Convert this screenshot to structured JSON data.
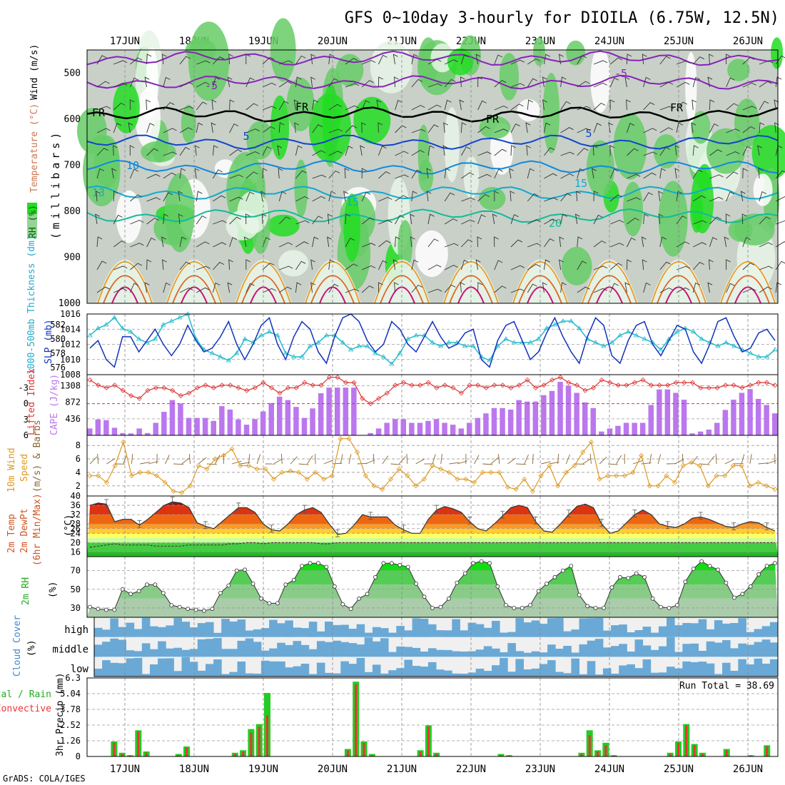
{
  "title": "GFS 0~10day 3-hourly for DIOILA (6.75W, 12.5N)",
  "credit": "GrADS: COLA/IGES",
  "dates": [
    "17JUN",
    "18JUN",
    "19JUN",
    "20JUN",
    "21JUN",
    "22JUN",
    "23JUN",
    "24JUN",
    "25JUN",
    "26JUN"
  ],
  "colors": {
    "rh_green_dark": "#22dd22",
    "rh_green": "#66cc66",
    "rh_light": "#e8f4e8",
    "rh_grey": "#c8d0c8",
    "slp": "#1133bb",
    "thickness": "#22bbcc",
    "lifted_index": "#dd3333",
    "cape": "#bb77ee",
    "wind_speed": "#dd9922",
    "rh_surface": "#33cc33",
    "cloud_blue": "#6aa9d6",
    "precip_total": "#22cc22",
    "precip_conv": "#ee3333"
  },
  "chart_data": [
    {
      "panel": "upper-air",
      "type": "heatmap",
      "ylabel": "(millibars)",
      "yticks": [
        500,
        600,
        700,
        800,
        900,
        1000
      ],
      "ylim": [
        1000,
        450
      ],
      "legend_labels": [
        "RH (%)",
        "Temperature (°C)",
        "Wind (m/s)"
      ],
      "contour_labels": [
        "-5",
        "FR",
        "5",
        "10",
        "13",
        "15",
        "20"
      ],
      "temperature_levels_hpa": [
        {
          "label": "-5",
          "color": "#8822bb",
          "p": 520
        },
        {
          "label": "-5",
          "color": "#8822bb",
          "p": 468
        },
        {
          "label": "FR",
          "color": "#000000",
          "p": 590
        },
        {
          "label": "5",
          "color": "#1144cc",
          "p": 650
        },
        {
          "label": "10",
          "color": "#1188dd",
          "p": 705
        },
        {
          "label": "15",
          "color": "#11aacc",
          "p": 760
        },
        {
          "label": "20",
          "color": "#11bb99",
          "p": 810
        }
      ]
    },
    {
      "panel": "pressure",
      "type": "line",
      "series": [
        {
          "name": "SLP (mb)",
          "axis": "right",
          "yticks": [
            1008,
            1010,
            1012,
            1014,
            1016
          ],
          "values": [
            1011.5,
            1012.5,
            1010,
            1009,
            1013,
            1013,
            1011,
            1012.5,
            1014,
            1012,
            1010.5,
            1012,
            1014.5,
            1012.5,
            1011,
            1011.5,
            1013,
            1015,
            1012,
            1010,
            1012,
            1014.5,
            1015.5,
            1012,
            1010,
            1013,
            1015,
            1014,
            1011,
            1009.5,
            1013,
            1015.5,
            1016,
            1015,
            1012.5,
            1011,
            1012,
            1015,
            1014,
            1012,
            1011,
            1013,
            1015,
            1013,
            1011.5,
            1012,
            1013.5,
            1014,
            1010,
            1009,
            1012.5,
            1014.5,
            1015,
            1012.5,
            1010,
            1011,
            1013.5,
            1015.5,
            1013,
            1011,
            1009.5,
            1013,
            1015.5,
            1014.5,
            1010.5,
            1009.5,
            1012.5,
            1014.5,
            1015,
            1012,
            1010.5,
            1012.5,
            1014.5,
            1014,
            1011,
            1009.5,
            1012,
            1015,
            1015.5,
            1013,
            1011,
            1011.5,
            1013.5,
            1014,
            1012.5
          ]
        },
        {
          "name": "1000-500mb Thickness (dm)",
          "axis": "left",
          "yticks": [
            576,
            578,
            580,
            582
          ],
          "values": [
            580.5,
            581.5,
            582,
            583,
            581.5,
            581,
            580,
            579.5,
            580,
            582,
            582.5,
            583,
            583.5,
            580,
            578.5,
            578,
            577.5,
            577,
            578,
            580,
            579.5,
            580.5,
            581,
            580.5,
            578,
            577.5,
            577.5,
            579,
            579.5,
            580.5,
            580.5,
            579.5,
            578.5,
            579,
            579,
            578,
            577.5,
            576.5,
            578,
            580,
            580.5,
            580.5,
            579.5,
            579,
            579.5,
            579.5,
            579,
            579,
            577.5,
            577,
            579,
            580,
            579.5,
            579.5,
            579.5,
            580,
            581.5,
            582,
            582.5,
            582.5,
            581.5,
            580,
            579.5,
            579,
            579.5,
            580.5,
            581,
            580.5,
            580,
            579.5,
            578.5,
            580,
            581,
            581.5,
            581,
            580,
            579.5,
            579,
            579.5,
            579,
            578.5,
            578,
            577.5,
            577.5,
            578.5
          ]
        }
      ]
    },
    {
      "panel": "instability",
      "type": "bar",
      "series": [
        {
          "name": "CAPE (J/kg)",
          "axis": "right",
          "yticks": [
            436,
            872,
            1308
          ],
          "values": [
            180,
            420,
            400,
            200,
            60,
            50,
            180,
            60,
            330,
            620,
            930,
            840,
            460,
            460,
            460,
            380,
            770,
            680,
            420,
            280,
            430,
            630,
            850,
            1020,
            930,
            750,
            460,
            710,
            1110,
            1260,
            1260,
            1260,
            1260,
            0,
            60,
            180,
            330,
            430,
            430,
            330,
            330,
            380,
            430,
            330,
            280,
            180,
            330,
            460,
            580,
            720,
            720,
            680,
            930,
            890,
            890,
            1060,
            1170,
            1410,
            1310,
            1120,
            870,
            720,
            100,
            180,
            250,
            330,
            330,
            330,
            800,
            1210,
            1210,
            1120,
            940,
            50,
            100,
            150,
            330,
            670,
            940,
            1120,
            1220,
            960,
            800,
            580
          ]
        },
        {
          "name": "Lifted Index",
          "axis": "left",
          "yticks": [
            -3,
            0,
            3,
            6
          ],
          "values": [
            -4.5,
            -3.5,
            -3,
            -3.5,
            -2.5,
            -1.5,
            -1,
            -2.5,
            -3,
            -3,
            -2.5,
            -1.5,
            -2,
            -3,
            -3.5,
            -3,
            -3.5,
            -3.5,
            -3,
            -2.5,
            -3,
            -4,
            -3,
            -2,
            -3,
            -3,
            -4,
            -3.5,
            -3.5,
            -5,
            -5,
            -4,
            -4,
            -1,
            0,
            -1,
            -2,
            -3.5,
            -4,
            -3.5,
            -3.5,
            -4,
            -3,
            -3.5,
            -3,
            -2,
            -3.5,
            -3.5,
            -3,
            -3.5,
            -3.5,
            -3,
            -3.5,
            -4.5,
            -3,
            -3.5,
            -4.5,
            -5,
            -4,
            -3.5,
            -2.5,
            -3,
            -4.5,
            -4,
            -3.5,
            -3.5,
            -4,
            -4.5,
            -3.5,
            -3.5,
            -3.5,
            -4,
            -4,
            -4,
            -3,
            -3,
            -3,
            -3.5,
            -3.5,
            -3,
            -3.5,
            -4,
            -4,
            -3.5
          ]
        }
      ]
    },
    {
      "panel": "wind",
      "type": "line",
      "name": "10m Wind Speed (m/s)",
      "yticks": [
        2,
        4,
        6,
        8
      ],
      "values": [
        3.5,
        3.5,
        2.5,
        5,
        8.5,
        3.5,
        4,
        4,
        3.5,
        2.5,
        1.2,
        1,
        2,
        5,
        4.5,
        6,
        6.5,
        7.5,
        5,
        5,
        4.5,
        4.5,
        3,
        4,
        4.2,
        4,
        3,
        4,
        3,
        3.5,
        9,
        9,
        7,
        3.5,
        2,
        1.5,
        3,
        4.5,
        3.5,
        2,
        3,
        5,
        4.5,
        4,
        3,
        3,
        2.5,
        4,
        4,
        4,
        1.8,
        1.5,
        3,
        1.2,
        3.5,
        5,
        2,
        4,
        5,
        7,
        8.5,
        3,
        3.5,
        3.5,
        3.5,
        4,
        6.5,
        2,
        2,
        3.5,
        2.5,
        5,
        5.5,
        5,
        2,
        3.5,
        3.5,
        5,
        5,
        2,
        2.5,
        2,
        1.5
      ]
    },
    {
      "panel": "temperature",
      "type": "area",
      "yticks": [
        16,
        20,
        24,
        26,
        28,
        32,
        36,
        40
      ],
      "ylim": [
        14,
        40
      ],
      "series": [
        {
          "name": "2m Temp (°C)",
          "values": [
            36,
            37,
            36.5,
            29,
            30,
            30,
            27.5,
            30,
            33,
            36,
            37.5,
            37,
            35,
            28.5,
            27,
            26,
            29,
            32,
            35,
            35,
            33,
            28,
            25.5,
            25,
            28,
            32,
            34,
            35,
            33,
            28,
            23.5,
            24,
            27.5,
            32,
            31,
            31,
            31,
            27.5,
            25.5,
            24,
            24,
            30,
            34,
            35.5,
            34.5,
            33,
            29,
            26,
            25,
            28,
            31.5,
            35,
            36,
            35,
            29,
            25,
            24.5,
            28,
            32,
            35.5,
            36.5,
            35,
            28,
            24,
            25,
            28.5,
            32,
            34,
            32,
            28,
            27,
            26.5,
            28,
            30.5,
            31,
            30,
            28.5,
            27,
            26.5,
            28,
            29,
            28.5,
            26.5,
            25
          ]
        },
        {
          "name": "2m DewPt (°C)",
          "values": [
            18,
            18.5,
            19,
            19.5,
            19,
            19,
            19,
            19,
            18.5,
            18.5,
            18.5,
            18.5,
            19,
            19,
            19,
            19,
            19,
            19.5,
            19.5,
            20,
            20,
            19.5,
            20,
            20,
            20,
            20,
            20,
            20,
            19.5,
            19.5,
            20,
            20,
            20,
            20,
            20,
            20,
            20,
            20,
            20,
            20,
            20,
            20,
            20,
            20,
            20,
            20,
            20,
            20,
            20,
            20,
            20,
            20,
            20,
            20,
            20,
            20,
            20,
            20,
            20,
            20,
            20,
            20,
            20,
            20,
            20,
            20,
            20,
            20,
            20,
            20,
            20,
            20,
            20,
            20,
            20,
            20,
            20,
            20,
            20,
            20,
            20,
            20,
            20,
            20
          ]
        }
      ]
    },
    {
      "panel": "humidity",
      "type": "area",
      "name": "2m RH (%)",
      "yticks": [
        30,
        50,
        70
      ],
      "values": [
        31,
        29,
        28,
        28,
        50,
        45,
        48,
        55,
        55,
        46,
        33,
        31,
        29,
        28,
        27,
        29,
        46,
        54,
        70,
        71,
        56,
        40,
        35,
        35,
        55,
        60,
        75,
        78,
        78,
        74,
        53,
        34,
        29,
        40,
        45,
        63,
        78,
        78,
        76,
        74,
        56,
        42,
        30,
        31,
        40,
        57,
        67,
        78,
        80,
        78,
        53,
        33,
        30,
        30,
        33,
        48,
        56,
        63,
        70,
        75,
        44,
        32,
        30,
        30,
        52,
        63,
        62,
        67,
        63,
        40,
        31,
        30,
        33,
        58,
        72,
        80,
        75,
        71,
        57,
        41,
        45,
        53,
        66,
        75,
        78
      ]
    },
    {
      "panel": "clouds",
      "type": "heatmap",
      "name": "Cloud Cover (%)",
      "rows": [
        "high",
        "middle",
        "low"
      ]
    },
    {
      "panel": "precipitation",
      "type": "bar",
      "ylabel": "3hr Precip (mm)",
      "yticks": [
        0,
        1.26,
        2.52,
        3.78,
        5.04,
        6.3
      ],
      "ylim": [
        0,
        6.3
      ],
      "annotation": "Run Total = 38.69",
      "series": [
        {
          "name": "Total / Rain",
          "values": [
            0,
            0,
            0,
            1.2,
            0.3,
            0.1,
            2.1,
            0.4,
            0,
            0,
            0,
            0.2,
            0.8,
            0,
            0,
            0,
            0,
            0,
            0.3,
            0.5,
            2.2,
            2.6,
            5.1,
            0,
            0,
            0,
            0,
            0,
            0,
            0,
            0,
            0,
            0.6,
            6,
            1.2,
            0.2,
            0,
            0,
            0,
            0,
            0,
            0.5,
            2.5,
            0.3,
            0,
            0,
            0,
            0,
            0,
            0,
            0,
            0.2,
            0.1,
            0,
            0,
            0,
            0,
            0,
            0,
            0,
            0,
            0.3,
            2.1,
            0.5,
            1.1,
            0.1,
            0,
            0,
            0,
            0,
            0,
            0,
            0.3,
            1.2,
            2.6,
            1,
            0.3,
            0,
            0,
            0.6,
            0,
            0,
            0.1,
            0,
            0.9,
            0
          ]
        },
        {
          "name": "Convective",
          "values": [
            0,
            0,
            0,
            1.1,
            0.2,
            0.1,
            2.0,
            0.3,
            0,
            0,
            0,
            0.1,
            0.7,
            0,
            0,
            0,
            0,
            0,
            0.2,
            0.4,
            1.9,
            2.4,
            3.3,
            0,
            0,
            0,
            0,
            0,
            0,
            0,
            0,
            0,
            0.5,
            5.8,
            1.1,
            0.1,
            0,
            0,
            0,
            0,
            0,
            0.4,
            2.4,
            0.2,
            0,
            0,
            0,
            0,
            0,
            0,
            0,
            0.1,
            0.1,
            0,
            0,
            0,
            0,
            0,
            0,
            0,
            0,
            0.2,
            1.7,
            0.4,
            0.9,
            0.1,
            0,
            0,
            0,
            0,
            0,
            0,
            0.2,
            1.1,
            2.5,
            0.9,
            0.2,
            0,
            0,
            0.5,
            0,
            0,
            0.1,
            0,
            0.8,
            0
          ]
        }
      ]
    }
  ],
  "labels": {
    "pressure_left": "1000-500mb Thickness (dm)",
    "pressure_right": "SLP (mb)",
    "instab_left": "Lifted Index",
    "instab_right": "CAPE (J/kg)",
    "wind_a": "10m Wind",
    "wind_b": "Speed",
    "wind_c": "(m/s) & Barbs",
    "temp_a": "2m Temp",
    "temp_b": "2m DewPt",
    "temp_c": "(6hr Min/Max)",
    "temp_unit": "(°C)",
    "rh_a": "2m RH",
    "rh_unit": "(%)",
    "cloud_a": "Cloud Cover",
    "cloud_unit": "(%)",
    "precip_a": "Total / Rain",
    "precip_b": "Convective",
    "precip_unit": "3hr Precip (mm)",
    "upper_rh": "RH (%)",
    "upper_temp": "Temperature (°C)",
    "upper_wind": "Wind (m/s)",
    "upper_unit": "(millibars)"
  }
}
